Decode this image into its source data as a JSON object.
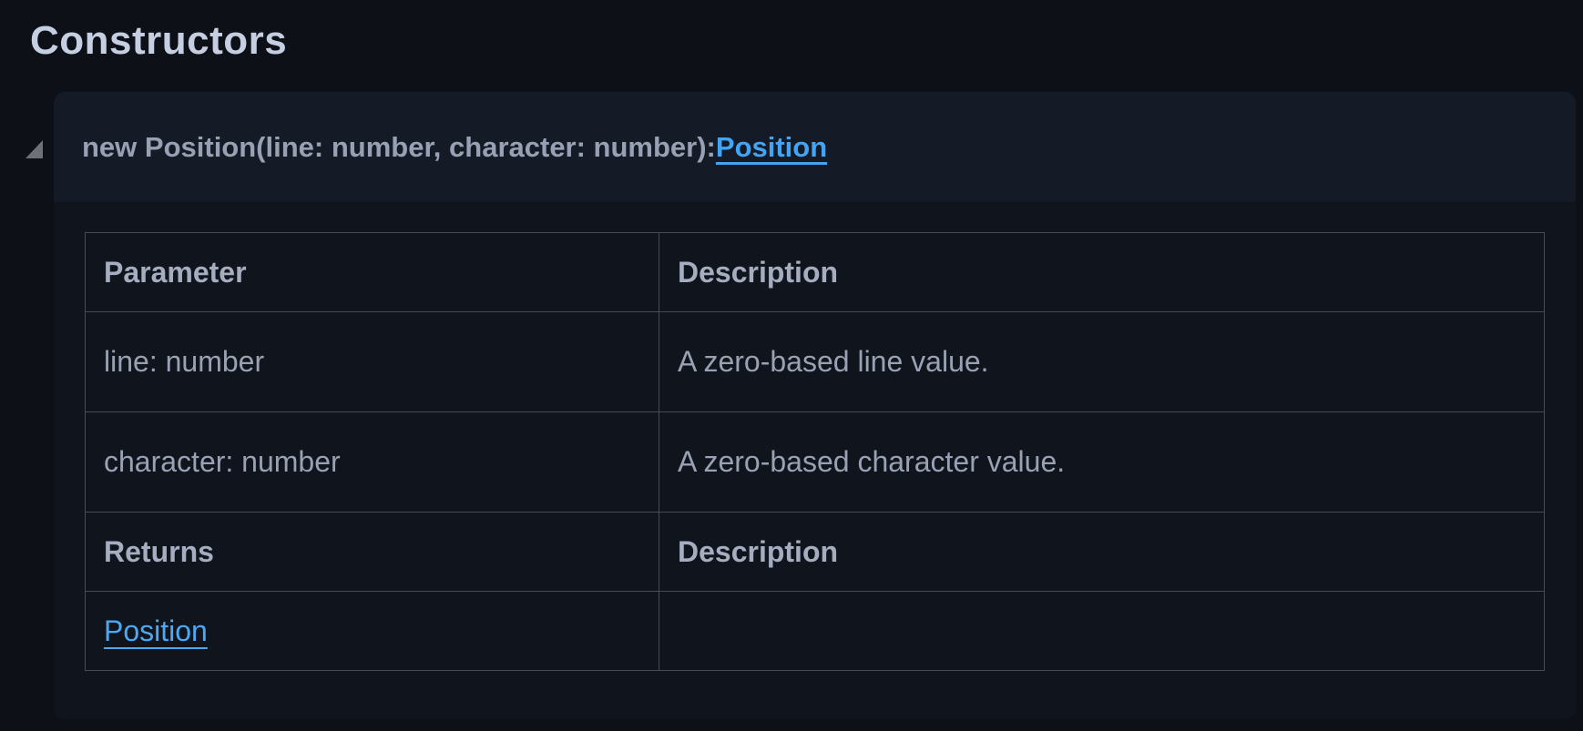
{
  "colors": {
    "page_bg": "#0d1016",
    "card_bg": "#10141d",
    "card_header_bg": "#151a27",
    "link_accent": "#42a4f5",
    "table_border": "#454b57"
  },
  "heading": "Constructors",
  "constructor": {
    "collapse_state": "expanded",
    "signature_prefix": "new Position(line: number, character: number): ",
    "return_type_link": "Position"
  },
  "parameters_table": {
    "param_col_header": "Parameter",
    "desc_col_header": "Description",
    "rows": [
      {
        "param": "line: number",
        "desc": "A zero-based line value."
      },
      {
        "param": "character: number",
        "desc": "A zero-based character value."
      }
    ],
    "returns_col_header": "Returns",
    "returns_desc_col_header": "Description",
    "returns_link": "Position",
    "returns_desc": ""
  }
}
